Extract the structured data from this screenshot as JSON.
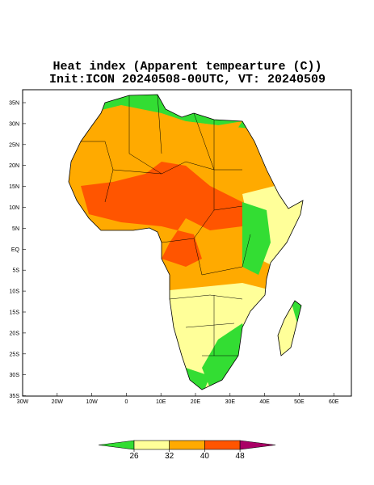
{
  "header": {
    "title": "Heat index (Apparent tempearture (C))",
    "subtitle": "Init:ICON 20240508-00UTC, VT: 20240509"
  },
  "map": {
    "lat_ticks": [
      "35N",
      "30N",
      "25N",
      "20N",
      "15N",
      "10N",
      "5N",
      "EQ",
      "5S",
      "10S",
      "15S",
      "20S",
      "25S",
      "30S",
      "35S"
    ],
    "lon_ticks": [
      "30W",
      "20W",
      "10W",
      "0",
      "10E",
      "20E",
      "30E",
      "40E",
      "50E",
      "60E"
    ]
  },
  "colorbar": {
    "levels": [
      26,
      32,
      40,
      48
    ],
    "colors": [
      "#33dd33",
      "#ffff99",
      "#ffaa00",
      "#ff5500",
      "#aa0066"
    ]
  }
}
